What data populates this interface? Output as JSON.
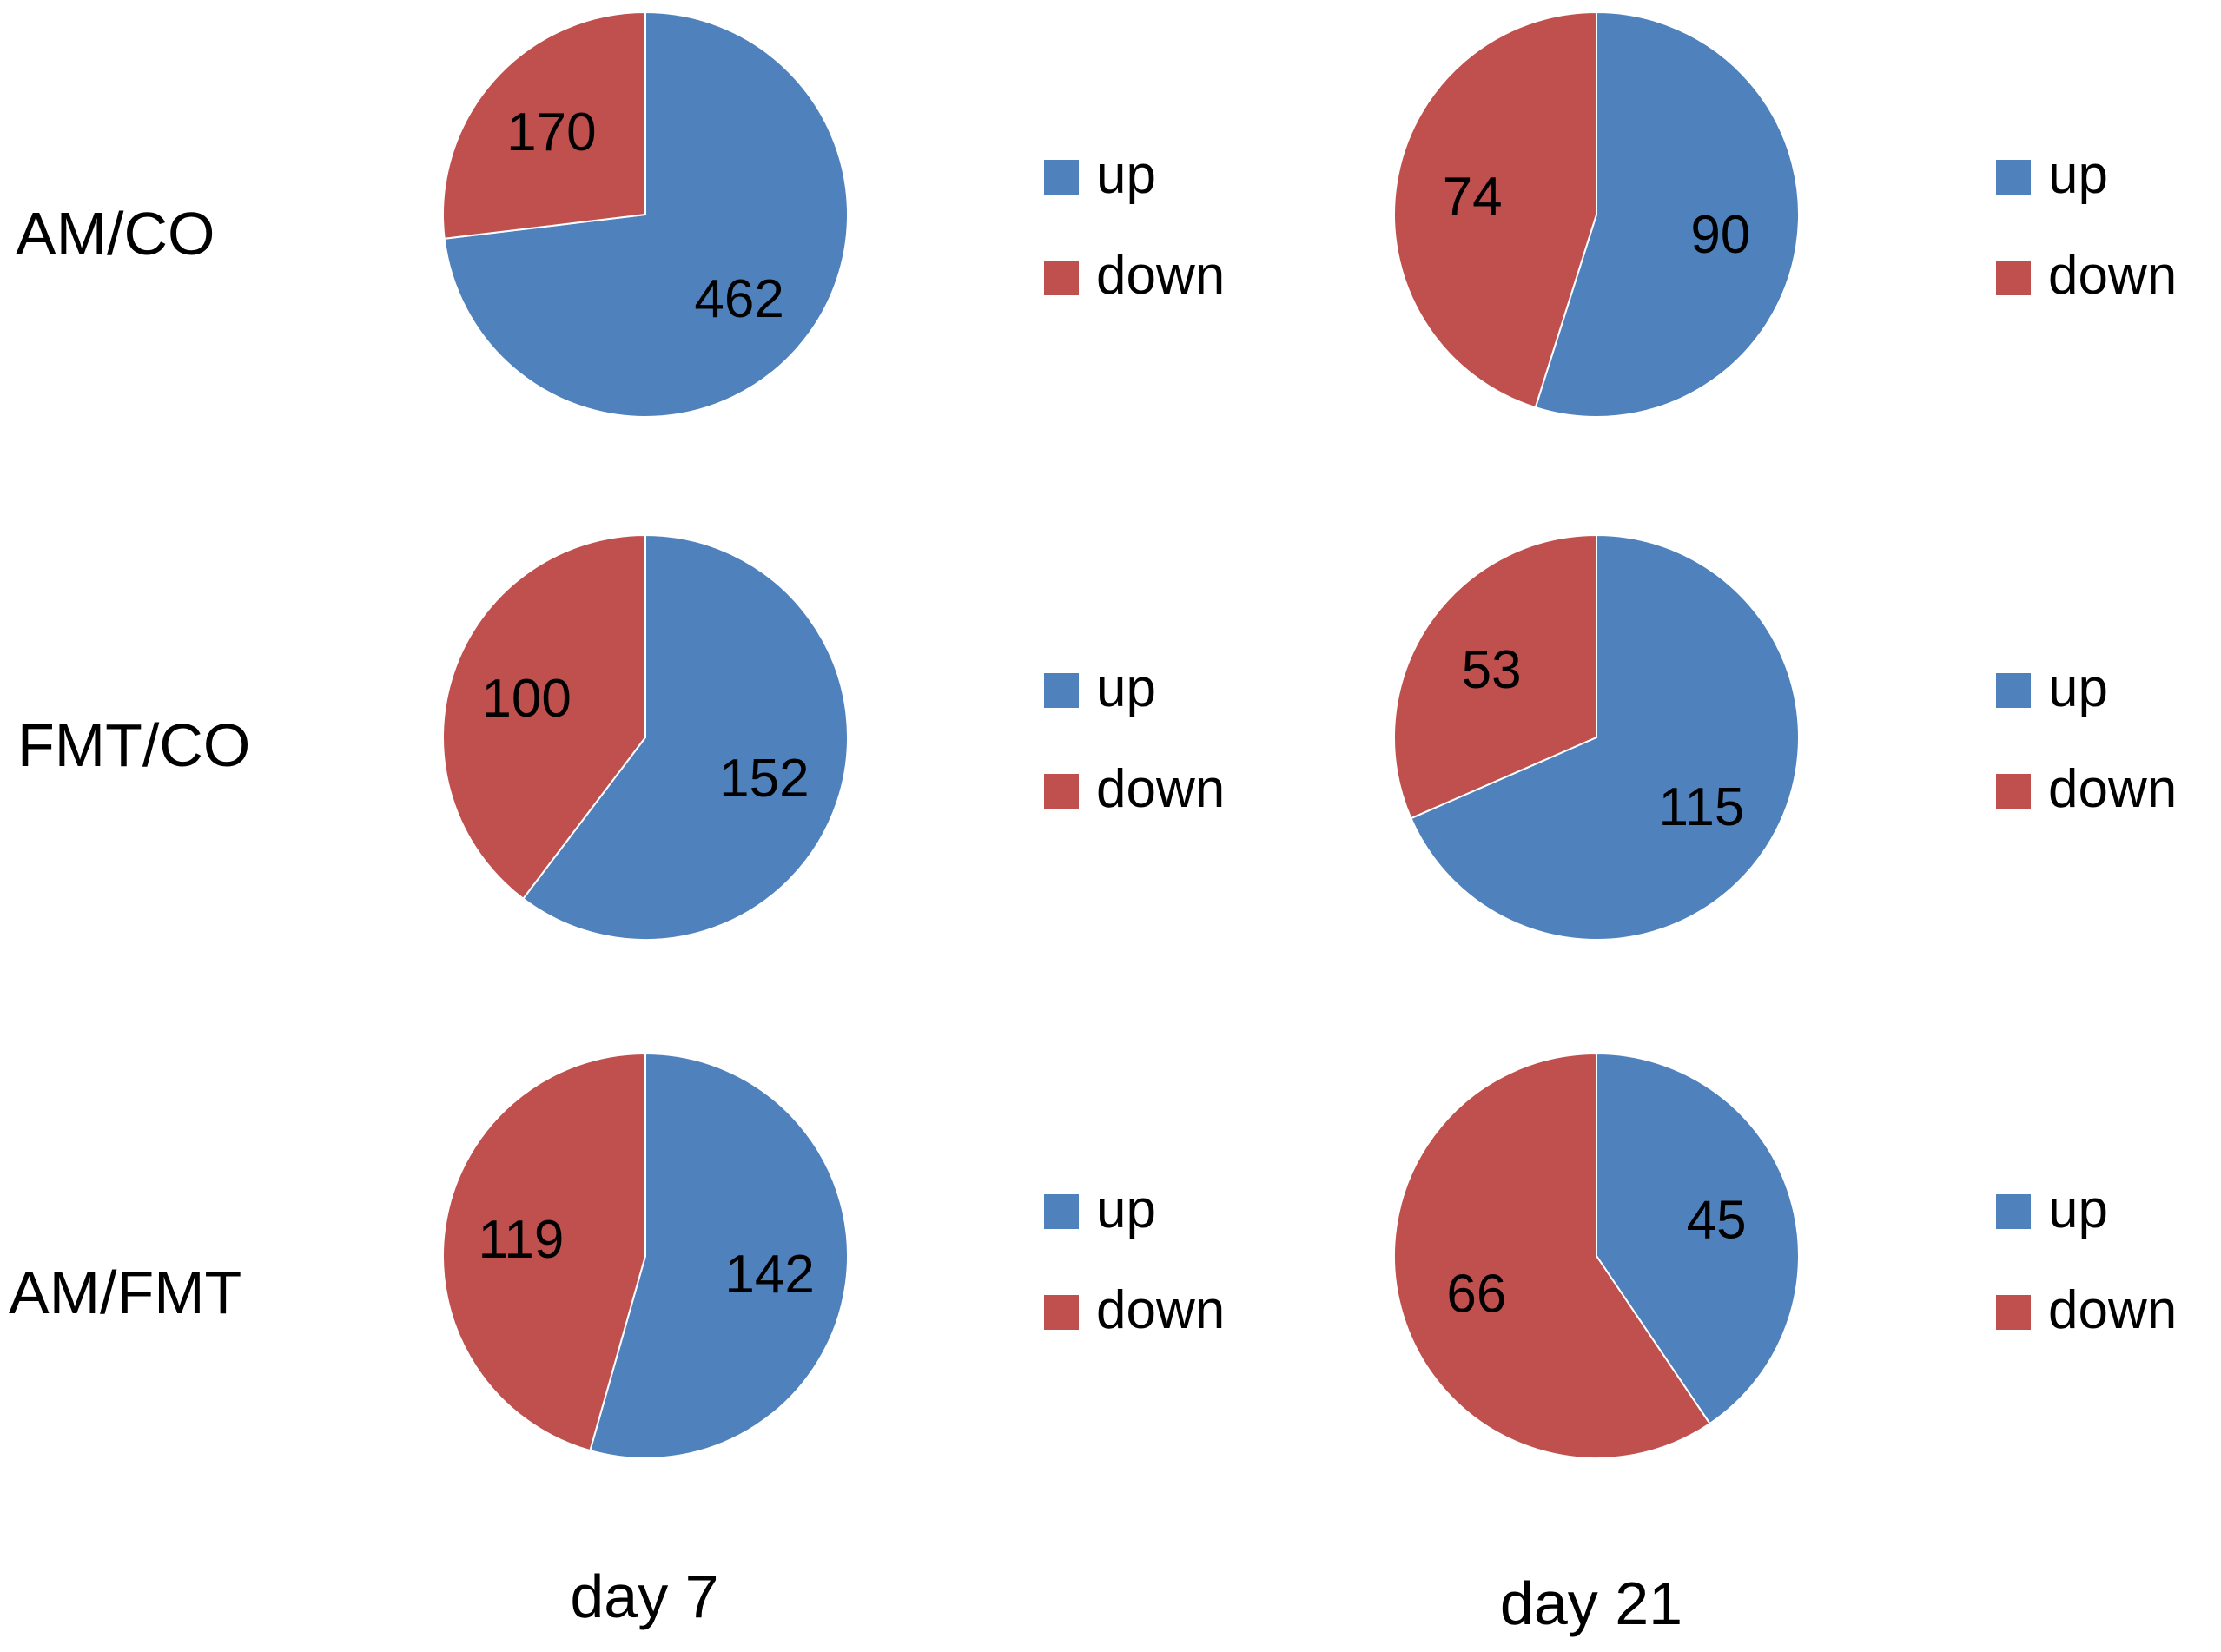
{
  "colors": {
    "up": "#4F81BD",
    "down": "#C0504D",
    "slice_border": "#ffffff"
  },
  "rows": [
    "AM/CO",
    "FMT/CO",
    "AM/FMT"
  ],
  "columns": [
    "day 7",
    "day 21"
  ],
  "legend": {
    "up": "up",
    "down": "down"
  },
  "chart_data": [
    {
      "type": "pie",
      "row": "AM/CO",
      "column": "day 7",
      "categories": [
        "up",
        "down"
      ],
      "values": [
        462,
        170
      ]
    },
    {
      "type": "pie",
      "row": "AM/CO",
      "column": "day 21",
      "categories": [
        "up",
        "down"
      ],
      "values": [
        90,
        74
      ]
    },
    {
      "type": "pie",
      "row": "FMT/CO",
      "column": "day 7",
      "categories": [
        "up",
        "down"
      ],
      "values": [
        152,
        100
      ]
    },
    {
      "type": "pie",
      "row": "FMT/CO",
      "column": "day 21",
      "categories": [
        "up",
        "down"
      ],
      "values": [
        115,
        53
      ]
    },
    {
      "type": "pie",
      "row": "AM/FMT",
      "column": "day 7",
      "categories": [
        "up",
        "down"
      ],
      "values": [
        142,
        119
      ]
    },
    {
      "type": "pie",
      "row": "AM/FMT",
      "column": "day 21",
      "categories": [
        "up",
        "down"
      ],
      "values": [
        45,
        66
      ]
    }
  ]
}
